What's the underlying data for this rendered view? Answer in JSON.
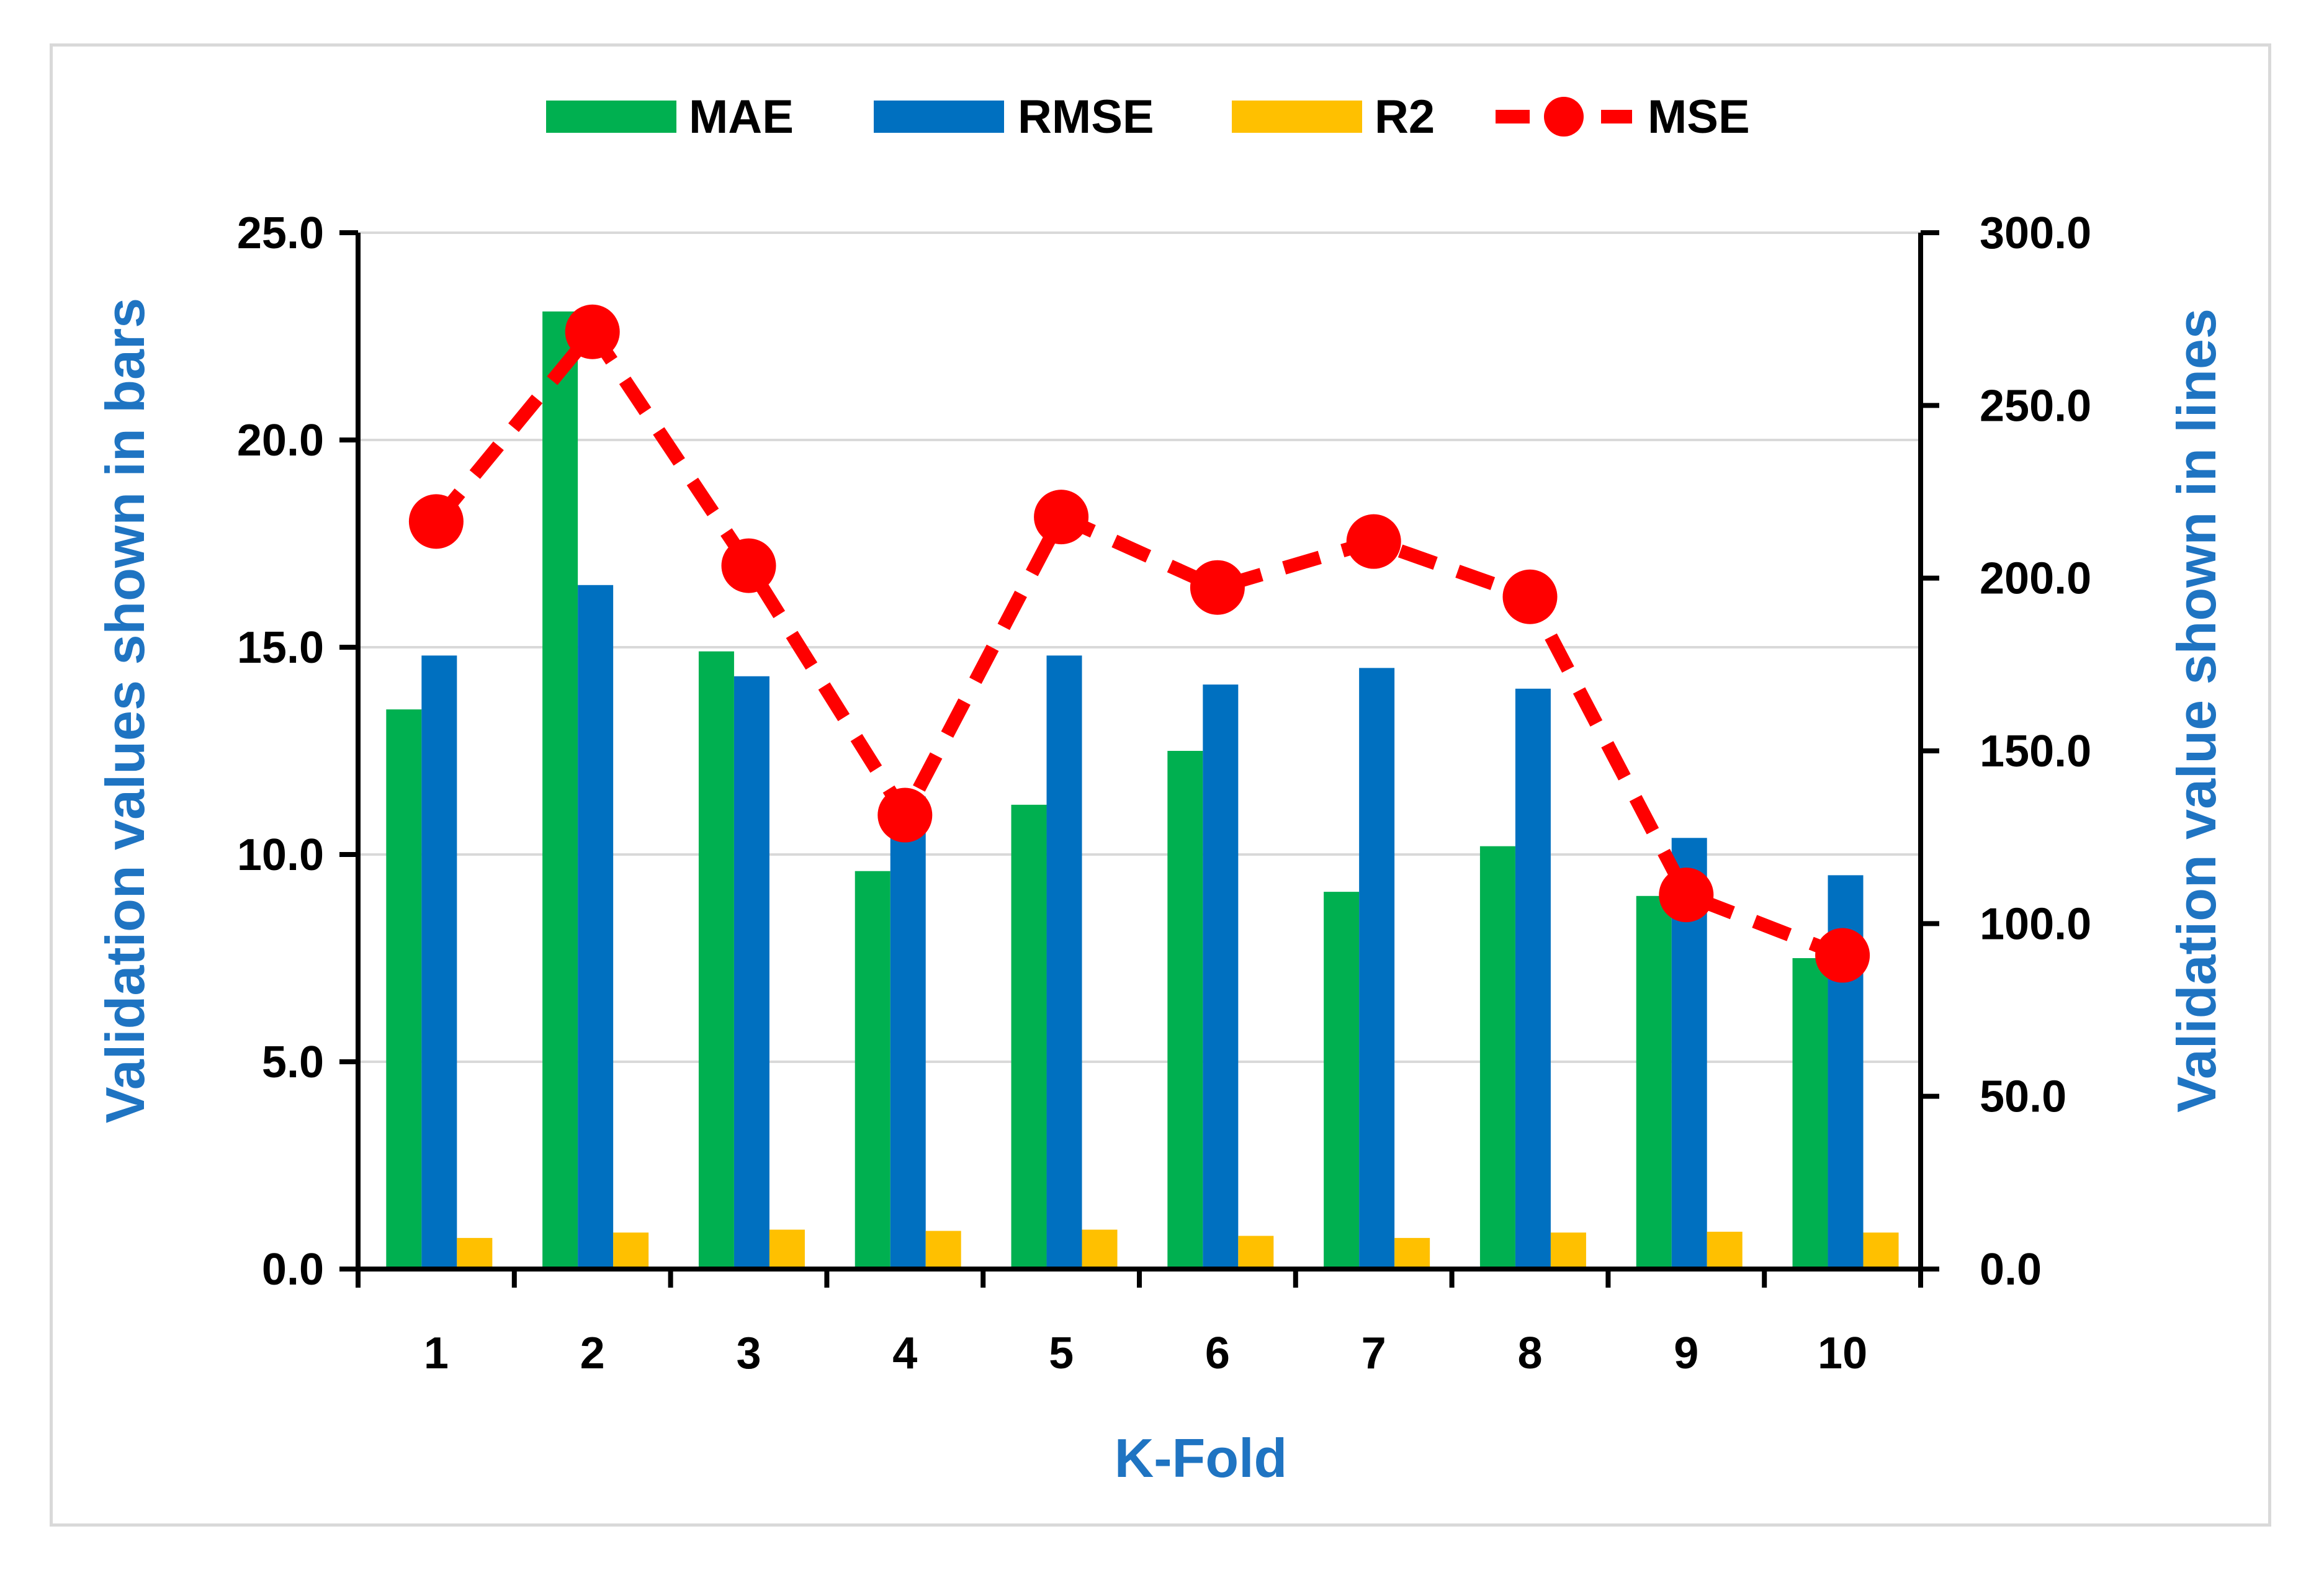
{
  "chart_data": {
    "type": "bar",
    "categories": [
      "1",
      "2",
      "3",
      "4",
      "5",
      "6",
      "7",
      "8",
      "9",
      "10"
    ],
    "series": [
      {
        "name": "MAE",
        "axis": "left",
        "kind": "bar",
        "color": "#00b050",
        "values": [
          13.5,
          23.1,
          14.9,
          9.6,
          11.2,
          12.5,
          9.1,
          10.2,
          9.0,
          7.5
        ]
      },
      {
        "name": "RMSE",
        "axis": "left",
        "kind": "bar",
        "color": "#0070c0",
        "values": [
          14.8,
          16.5,
          14.3,
          11.4,
          14.8,
          14.1,
          14.5,
          14.0,
          10.4,
          9.5
        ]
      },
      {
        "name": "R2",
        "axis": "left",
        "kind": "bar",
        "color": "#ffc000",
        "values": [
          0.75,
          0.88,
          0.95,
          0.92,
          0.95,
          0.8,
          0.75,
          0.88,
          0.9,
          0.88
        ]
      },
      {
        "name": "MSE",
        "axis": "right",
        "kind": "line",
        "color": "#ff0000",
        "values": [
          216.4,
          271.3,
          203.6,
          131.4,
          217.7,
          197.3,
          210.6,
          194.6,
          108.3,
          90.8
        ]
      }
    ],
    "title": "",
    "xlabel": "K-Fold",
    "ylabel": "Validation values shown in bars",
    "y2label": "Validation value shown in lines",
    "ylim": [
      0,
      25
    ],
    "y2lim": [
      0,
      300
    ],
    "yticks": [
      "0.0",
      "5.0",
      "10.0",
      "15.0",
      "20.0",
      "25.0"
    ],
    "y2ticks": [
      "0.0",
      "50.0",
      "100.0",
      "150.0",
      "200.0",
      "250.0",
      "300.0"
    ],
    "grid": true,
    "legend_position": "top"
  }
}
